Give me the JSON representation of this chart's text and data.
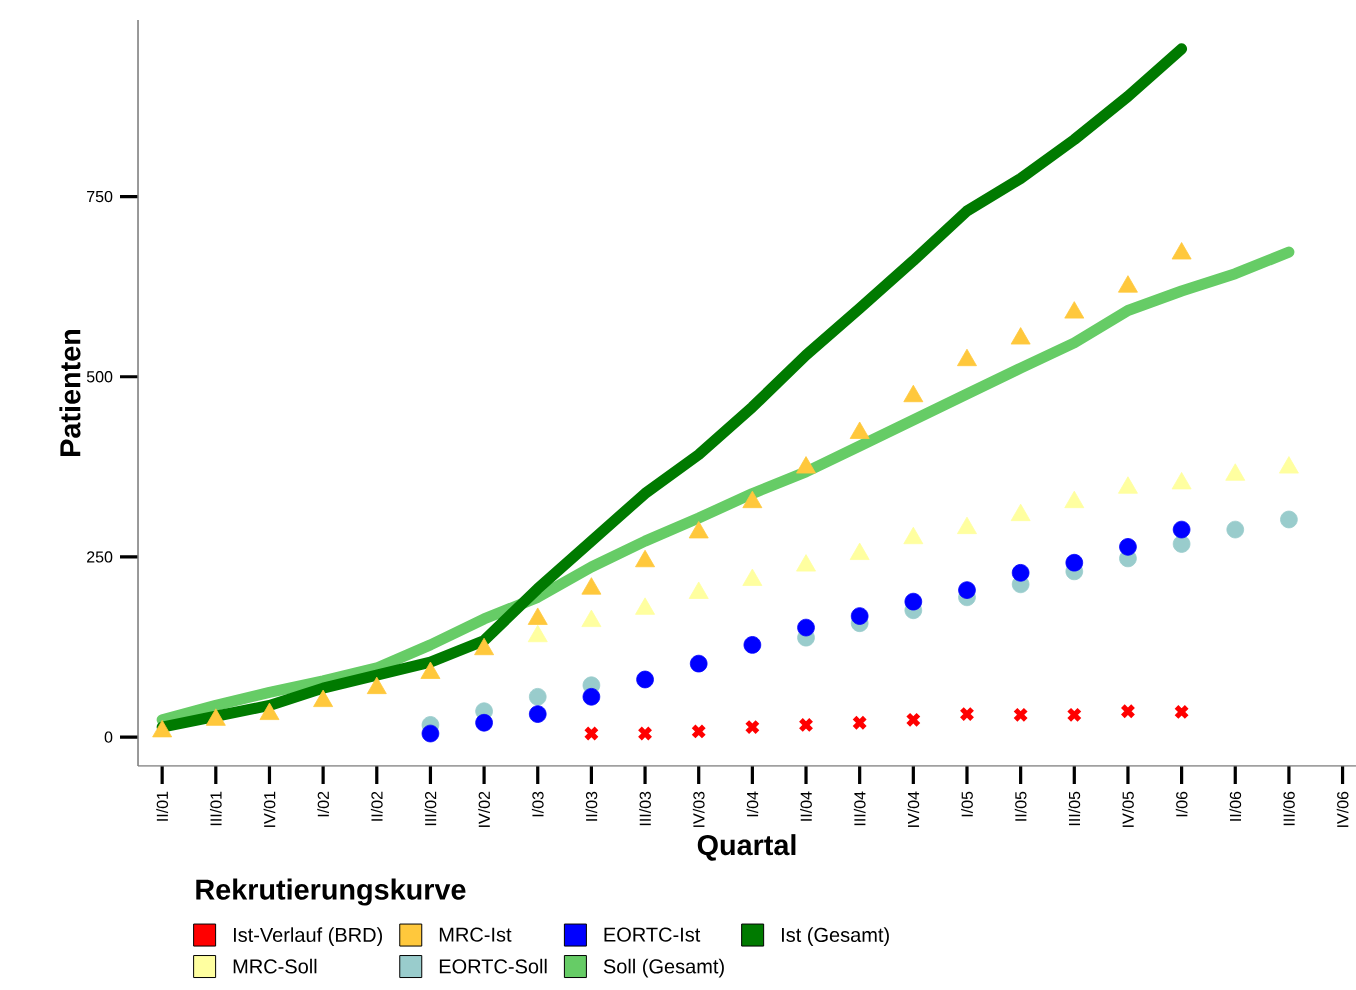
{
  "chart_data": {
    "type": "line",
    "xlabel": "Quartal",
    "ylabel": "Patienten",
    "legend_title": "Rekrutierungskurve",
    "legend": "bottom",
    "grid": false,
    "categories": [
      "II/01",
      "III/01",
      "IV/01",
      "I/02",
      "II/02",
      "III/02",
      "IV/02",
      "I/03",
      "II/03",
      "III/03",
      "IV/03",
      "I/04",
      "II/04",
      "III/04",
      "IV/04",
      "I/05",
      "II/05",
      "III/05",
      "IV/05",
      "I/06",
      "II/06",
      "III/06",
      "IV/06"
    ],
    "ylim": [
      -40,
      995
    ],
    "yticks": [
      0,
      250,
      500,
      750
    ],
    "series": [
      {
        "name": "Ist-Verlauf (BRD)",
        "type": "scatter",
        "marker": "cross",
        "color": "#ff0000",
        "values": [
          null,
          null,
          null,
          null,
          null,
          null,
          null,
          null,
          5,
          5,
          8,
          14,
          17,
          20,
          24,
          32,
          31,
          31,
          36,
          35,
          null,
          null,
          null
        ]
      },
      {
        "name": "MRC-Ist",
        "type": "scatter",
        "marker": "triangle",
        "color": "#ffc83c",
        "values": [
          8,
          24,
          32,
          50,
          68,
          89,
          122,
          164,
          206,
          244,
          284,
          326,
          374,
          422,
          473,
          523,
          553,
          589,
          625,
          671,
          null,
          null,
          null
        ]
      },
      {
        "name": "EORTC-Ist",
        "type": "scatter",
        "marker": "circle",
        "color": "#0000ff",
        "values": [
          null,
          null,
          null,
          null,
          null,
          5,
          20,
          32,
          56,
          80,
          102,
          128,
          152,
          168,
          188,
          204,
          228,
          242,
          264,
          288,
          null,
          null,
          null
        ]
      },
      {
        "name": "Ist (Gesamt)",
        "marker": "none",
        "color": "#007a00",
        "values": [
          14,
          29,
          44,
          68,
          86,
          104,
          134,
          206,
          272,
          338,
          392,
          458,
          530,
          595,
          661,
          730,
          775,
          829,
          889,
          955,
          null,
          null,
          null
        ]
      },
      {
        "name": "MRC-Soll",
        "type": "scatter",
        "marker": "triangle",
        "color": "#ffffa0",
        "values": [
          null,
          null,
          null,
          null,
          null,
          null,
          null,
          140,
          161,
          178,
          200,
          218,
          238,
          254,
          276,
          290,
          308,
          326,
          346,
          352,
          364,
          374,
          null
        ]
      },
      {
        "name": "EORTC-Soll",
        "type": "scatter",
        "marker": "circle",
        "color": "#99cccc",
        "values": [
          null,
          null,
          null,
          null,
          null,
          17,
          36,
          56,
          72,
          null,
          null,
          null,
          138,
          158,
          176,
          194,
          212,
          230,
          248,
          268,
          288,
          302,
          null
        ]
      },
      {
        "name": "Soll (Gesamt)",
        "marker": "none",
        "color": "#66cc66",
        "values": [
          24,
          44,
          62,
          78,
          96,
          128,
          164,
          194,
          236,
          272,
          304,
          338,
          368,
          404,
          440,
          476,
          512,
          547,
          592,
          619,
          643,
          673,
          null
        ]
      }
    ]
  }
}
